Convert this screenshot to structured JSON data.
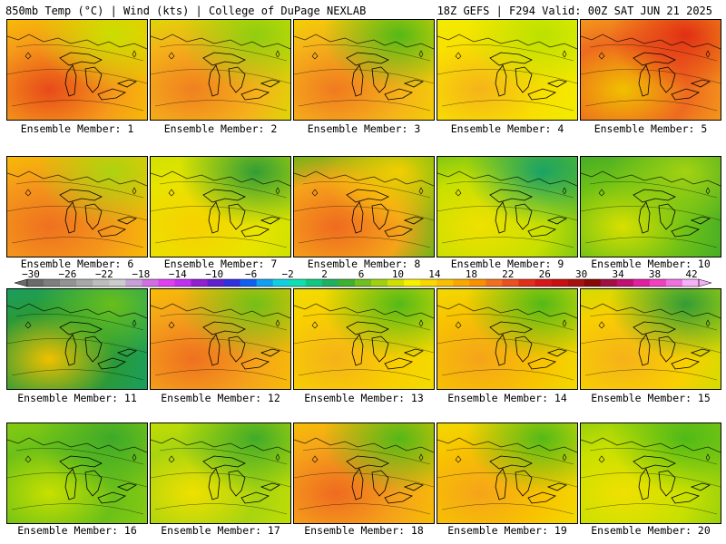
{
  "header": {
    "left": "850mb Temp (°C) | Wind (kts) | College of DuPage NEXLAB",
    "right": "18Z GEFS | F294 Valid: 00Z SAT JUN 21 2025"
  },
  "panels": [
    {
      "label": "Ensemble Member: 1",
      "fill": [
        "#f59a1a",
        "#f8c400",
        "#c8e000",
        "#e84a1a"
      ]
    },
    {
      "label": "Ensemble Member: 2",
      "fill": [
        "#f5b21a",
        "#d8e000",
        "#8ccd10",
        "#f08020"
      ]
    },
    {
      "label": "Ensemble Member: 3",
      "fill": [
        "#f5b21a",
        "#f4d600",
        "#4cb818",
        "#f07a20"
      ]
    },
    {
      "label": "Ensemble Member: 4",
      "fill": [
        "#f8e000",
        "#f0f000",
        "#b8e000",
        "#f5b41a"
      ]
    },
    {
      "label": "Ensemble Member: 5",
      "fill": [
        "#ee6a20",
        "#f5a41a",
        "#e02a14",
        "#f0c000"
      ]
    },
    {
      "label": "Ensemble Member: 6",
      "fill": [
        "#f59a1a",
        "#f8c400",
        "#a8d410",
        "#ef7020"
      ]
    },
    {
      "label": "Ensemble Member: 7",
      "fill": [
        "#e8e400",
        "#c8e000",
        "#2a9a38",
        "#f8d000"
      ]
    },
    {
      "label": "Ensemble Member: 8",
      "fill": [
        "#f5a41a",
        "#4cb818",
        "#f8d000",
        "#ef6a20"
      ]
    },
    {
      "label": "Ensemble Member: 9",
      "fill": [
        "#c8e000",
        "#6cc018",
        "#14a06a",
        "#f0e000"
      ]
    },
    {
      "label": "Ensemble Member: 10",
      "fill": [
        "#6cc018",
        "#3aa82a",
        "#a8d410",
        "#d8e000"
      ]
    },
    {
      "label": "Ensemble Member: 11",
      "fill": [
        "#2a9a38",
        "#14a06a",
        "#6cc018",
        "#f0c000"
      ]
    },
    {
      "label": "Ensemble Member: 12",
      "fill": [
        "#f5a41a",
        "#f8c400",
        "#6cc018",
        "#ef7020"
      ]
    },
    {
      "label": "Ensemble Member: 13",
      "fill": [
        "#f8d000",
        "#f0e000",
        "#4cb818",
        "#f5b21a"
      ]
    },
    {
      "label": "Ensemble Member: 14",
      "fill": [
        "#f8c400",
        "#f0e000",
        "#4cb818",
        "#f5a41a"
      ]
    },
    {
      "label": "Ensemble Member: 15",
      "fill": [
        "#f8d000",
        "#c8e000",
        "#2a9a38",
        "#f5b21a"
      ]
    },
    {
      "label": "Ensemble Member: 16",
      "fill": [
        "#6cc018",
        "#8ccd10",
        "#3aa82a",
        "#c8e000"
      ]
    },
    {
      "label": "Ensemble Member: 17",
      "fill": [
        "#a8d410",
        "#c8e000",
        "#3aa82a",
        "#f0e000"
      ]
    },
    {
      "label": "Ensemble Member: 18",
      "fill": [
        "#f5a41a",
        "#f8c400",
        "#4cb818",
        "#ef6a20"
      ]
    },
    {
      "label": "Ensemble Member: 19",
      "fill": [
        "#f8c400",
        "#f0e000",
        "#4cb818",
        "#f5a41a"
      ]
    },
    {
      "label": "Ensemble Member: 20",
      "fill": [
        "#c8e000",
        "#8ccd10",
        "#4cb818",
        "#f0e000"
      ]
    }
  ],
  "colorbar": {
    "labels": [
      "-30",
      "-26",
      "-22",
      "-18",
      "-14",
      "-10",
      "-6",
      "-2",
      "2",
      "6",
      "10",
      "14",
      "18",
      "22",
      "26",
      "30",
      "34",
      "38",
      "42"
    ],
    "colors": [
      "#6a6a6a",
      "#7e7e7e",
      "#949494",
      "#a8a8a8",
      "#bdbdbd",
      "#cccccc",
      "#c8a0d8",
      "#d070e0",
      "#e040f0",
      "#c030f0",
      "#9020d0",
      "#6020d0",
      "#3030e0",
      "#1060f0",
      "#10a0f0",
      "#10d0e0",
      "#10e0b0",
      "#10c880",
      "#20b060",
      "#40b030",
      "#70c020",
      "#a0d010",
      "#d0e000",
      "#f8f000",
      "#f8d800",
      "#f8c000",
      "#f8a800",
      "#f89000",
      "#f07020",
      "#ea5020",
      "#e03018",
      "#d81818",
      "#c81010",
      "#a81010",
      "#880808",
      "#a01040",
      "#c01070",
      "#e020a0",
      "#f040c0",
      "#f070e0",
      "#f8b0f8"
    ]
  }
}
